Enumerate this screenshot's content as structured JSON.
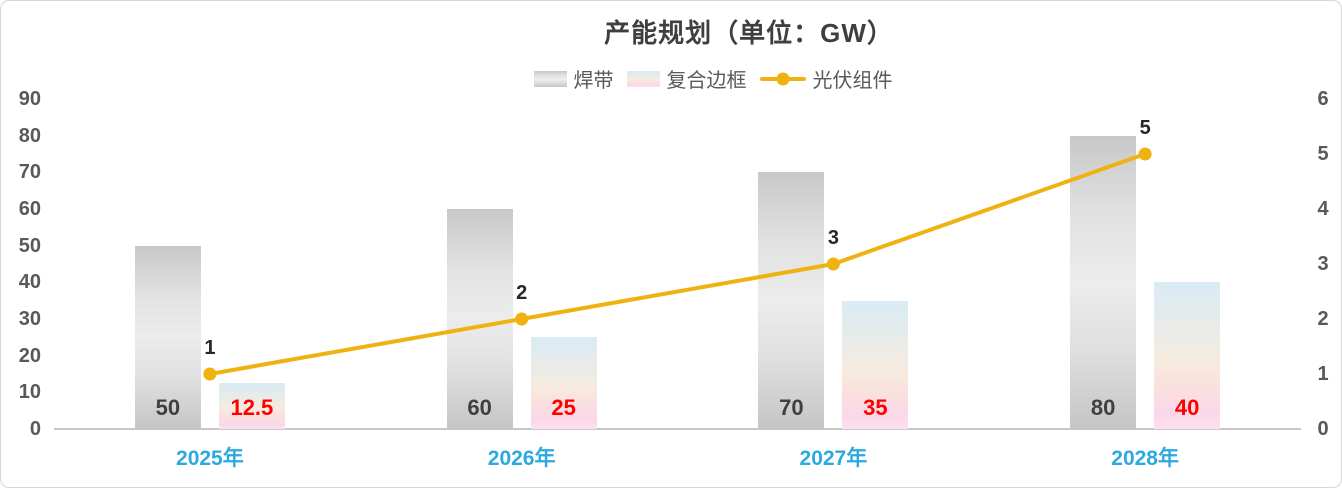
{
  "chart_data": {
    "type": "combo",
    "title": "产能规划（单位：GW）",
    "categories": [
      "2025年",
      "2026年",
      "2027年",
      "2028年"
    ],
    "series": [
      {
        "name": "焊带",
        "type": "bar",
        "axis": "left",
        "values": [
          50,
          60,
          70,
          80
        ],
        "swatch": "gray-gradient",
        "label_color": "#404040"
      },
      {
        "name": "复合边框",
        "type": "bar",
        "axis": "left",
        "values": [
          12.5,
          25,
          35,
          40
        ],
        "swatch": "blue-pink-gradient",
        "label_color": "#FE0000"
      },
      {
        "name": "光伏组件",
        "type": "line",
        "axis": "right",
        "values": [
          1,
          2,
          3,
          5
        ],
        "color": "#EEB211",
        "label_color": "#262626"
      }
    ],
    "left_axis": {
      "min": 0,
      "max": 90,
      "step": 10,
      "ticks": [
        0,
        10,
        20,
        30,
        40,
        50,
        60,
        70,
        80,
        90
      ]
    },
    "right_axis": {
      "min": 0,
      "max": 6,
      "step": 1,
      "ticks": [
        0,
        1,
        2,
        3,
        4,
        5,
        6
      ]
    },
    "legend_position": "top",
    "grid": false,
    "category_label_color": "#2BA9E0",
    "axis_text_color": "#595959",
    "title_color": "#3F3F3F"
  }
}
